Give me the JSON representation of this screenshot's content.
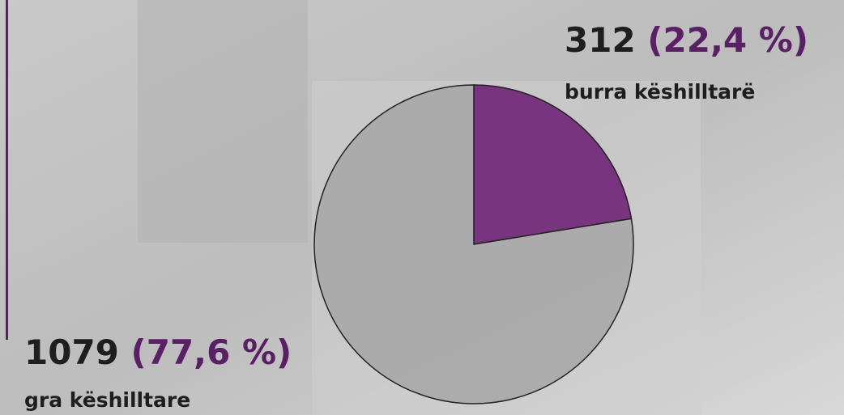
{
  "chart_data": {
    "type": "pie",
    "categories": [
      "burra këshilltarë",
      "gra këshilltare"
    ],
    "values": [
      312,
      1079
    ],
    "shares": [
      22.4,
      77.6
    ],
    "share_labels": [
      "(22,4 %)",
      "(77,6 %)"
    ],
    "colors": [
      "#6a1a72",
      "#a6a6a6"
    ]
  }
}
